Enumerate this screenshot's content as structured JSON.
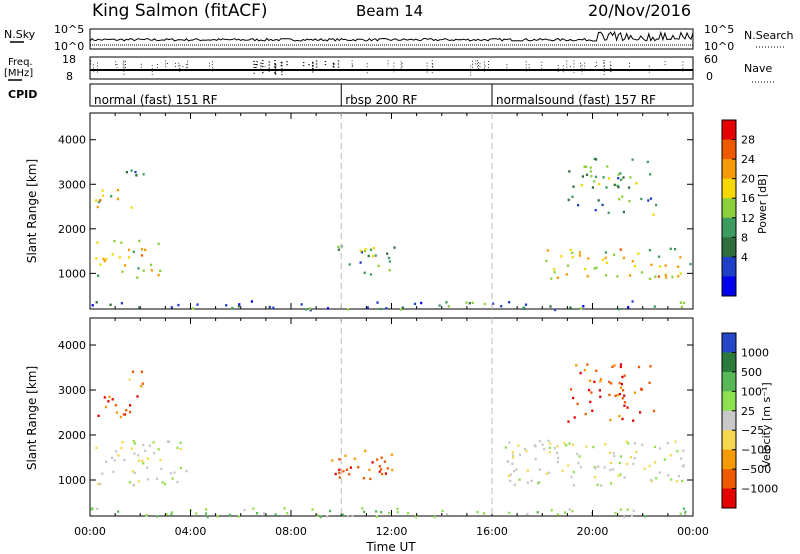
{
  "header": {
    "station": "King Salmon (fitACF)",
    "beam": "Beam 14",
    "date": "20/Nov/2016"
  },
  "strips": {
    "nsky_label": "N.Sky",
    "nsky_ticks": [
      "10^5",
      "10^0"
    ],
    "nsearch_label": "N.Search",
    "nsearch_ticks": [
      "10^5",
      "10^0"
    ],
    "freq_label": "Freq.",
    "freq_unit": "[MHz]",
    "freq_ticks": [
      "18",
      "8"
    ],
    "nave_label": "Nave",
    "nave_ticks": [
      "60",
      "0"
    ],
    "cpid_label": "CPID"
  },
  "cpid_segments": [
    {
      "label": "normal (fast) 151 RF",
      "start": 0,
      "end": 10
    },
    {
      "label": "rbsp 200 RF",
      "start": 10,
      "end": 16
    },
    {
      "label": "normalsound (fast) 157 RF",
      "start": 16,
      "end": 24
    }
  ],
  "x_axis": {
    "title": "Time UT",
    "ticks": [
      "00:00",
      "04:00",
      "08:00",
      "12:00",
      "16:00",
      "20:00",
      "00:00"
    ]
  },
  "power_colorbar": {
    "title": "Power [dB]",
    "ticks": [
      "28",
      "24",
      "20",
      "16",
      "12",
      "8",
      "4"
    ],
    "colors": [
      "#0000ee",
      "#1e3fc8",
      "#2c6e3d",
      "#3e9b60",
      "#8ccf3c",
      "#f5d800",
      "#f59a00",
      "#ef5a00",
      "#e60000"
    ]
  },
  "velocity_colorbar": {
    "title": "Velocity [m s⁻¹]",
    "ticks": [
      "1000",
      "500",
      "100",
      "25",
      "−25",
      "−100",
      "−500",
      "−1000"
    ],
    "colors": [
      "#2448c8",
      "#2a7a3c",
      "#58b858",
      "#8ee050",
      "#c8c8c8",
      "#f5d850",
      "#f59a00",
      "#ef5a00",
      "#e60000"
    ]
  },
  "chart_data": [
    {
      "type": "heatmap",
      "panel": "power",
      "ylabel": "Slant Range [km]",
      "xlabel": "",
      "xlim_hours": [
        0,
        24
      ],
      "ylim": [
        200,
        4600
      ],
      "yticks": [
        1000,
        2000,
        3000,
        4000
      ],
      "colorbar": "Power [dB]",
      "regions": [
        {
          "t0": 0.2,
          "t1": 2.8,
          "r0": 900,
          "r1": 1800,
          "level": 16
        },
        {
          "t0": 0.2,
          "t1": 1.9,
          "r0": 2400,
          "r1": 2900,
          "level": 16
        },
        {
          "t0": 1.4,
          "t1": 2.2,
          "r0": 3100,
          "r1": 3500,
          "level": 8
        },
        {
          "t0": 9.6,
          "t1": 12.2,
          "r0": 1000,
          "r1": 1700,
          "level": 12
        },
        {
          "t0": 0,
          "t1": 24,
          "r0": 200,
          "r1": 400,
          "level": 8
        },
        {
          "t0": 18.0,
          "t1": 24.0,
          "r0": 900,
          "r1": 1600,
          "level": 16
        },
        {
          "t0": 19.0,
          "t1": 22.5,
          "r0": 2300,
          "r1": 3600,
          "level": 12
        }
      ]
    },
    {
      "type": "heatmap",
      "panel": "velocity",
      "ylabel": "Slant Range [km]",
      "xlabel": "Time UT",
      "xlim_hours": [
        0,
        24
      ],
      "ylim": [
        200,
        4600
      ],
      "yticks": [
        1000,
        2000,
        3000,
        4000
      ],
      "colorbar": "Velocity [m s⁻¹]",
      "regions": [
        {
          "t0": 0.2,
          "t1": 3.8,
          "r0": 900,
          "r1": 1900,
          "level": 0
        },
        {
          "t0": 0.2,
          "t1": 1.9,
          "r0": 2400,
          "r1": 2900,
          "level": -500
        },
        {
          "t0": 1.4,
          "t1": 2.2,
          "r0": 3100,
          "r1": 3500,
          "level": -100
        },
        {
          "t0": 9.6,
          "t1": 12.2,
          "r0": 1000,
          "r1": 1700,
          "level": -500
        },
        {
          "t0": 0,
          "t1": 24,
          "r0": 200,
          "r1": 400,
          "level": 25
        },
        {
          "t0": 16.5,
          "t1": 24.0,
          "r0": 900,
          "r1": 1900,
          "level": 0
        },
        {
          "t0": 19.0,
          "t1": 22.5,
          "r0": 2300,
          "r1": 3600,
          "level": -500
        }
      ]
    }
  ]
}
